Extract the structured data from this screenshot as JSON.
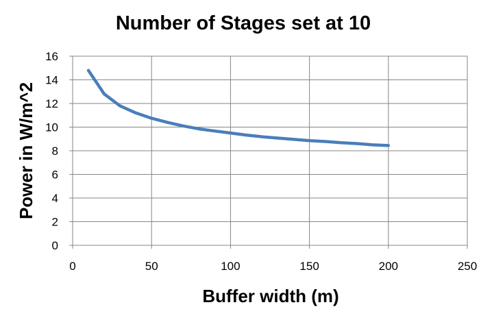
{
  "chart_data": {
    "type": "line",
    "title": "Number of Stages set at 10",
    "xlabel": "Buffer width (m)",
    "ylabel": "Power in W/m^2",
    "xlim": [
      0,
      250
    ],
    "ylim": [
      0,
      16
    ],
    "xticks": [
      0,
      50,
      100,
      150,
      200,
      250
    ],
    "yticks": [
      0,
      2,
      4,
      6,
      8,
      10,
      12,
      14,
      16
    ],
    "xtick_labels": [
      "0",
      "50",
      "100",
      "150",
      "200",
      "250"
    ],
    "ytick_labels": [
      "0",
      "2",
      "4",
      "6",
      "8",
      "10",
      "12",
      "14",
      "16"
    ],
    "grid": true,
    "legend": "none",
    "series": [
      {
        "color": "#4a7ebb",
        "x": [
          10,
          20,
          30,
          40,
          50,
          60,
          70,
          80,
          90,
          100,
          110,
          120,
          130,
          140,
          150,
          160,
          170,
          180,
          190,
          200
        ],
        "y": [
          14.8,
          12.8,
          11.8,
          11.2,
          10.75,
          10.4,
          10.1,
          9.85,
          9.67,
          9.5,
          9.33,
          9.18,
          9.07,
          8.96,
          8.86,
          8.78,
          8.68,
          8.61,
          8.5,
          8.44
        ]
      }
    ]
  }
}
